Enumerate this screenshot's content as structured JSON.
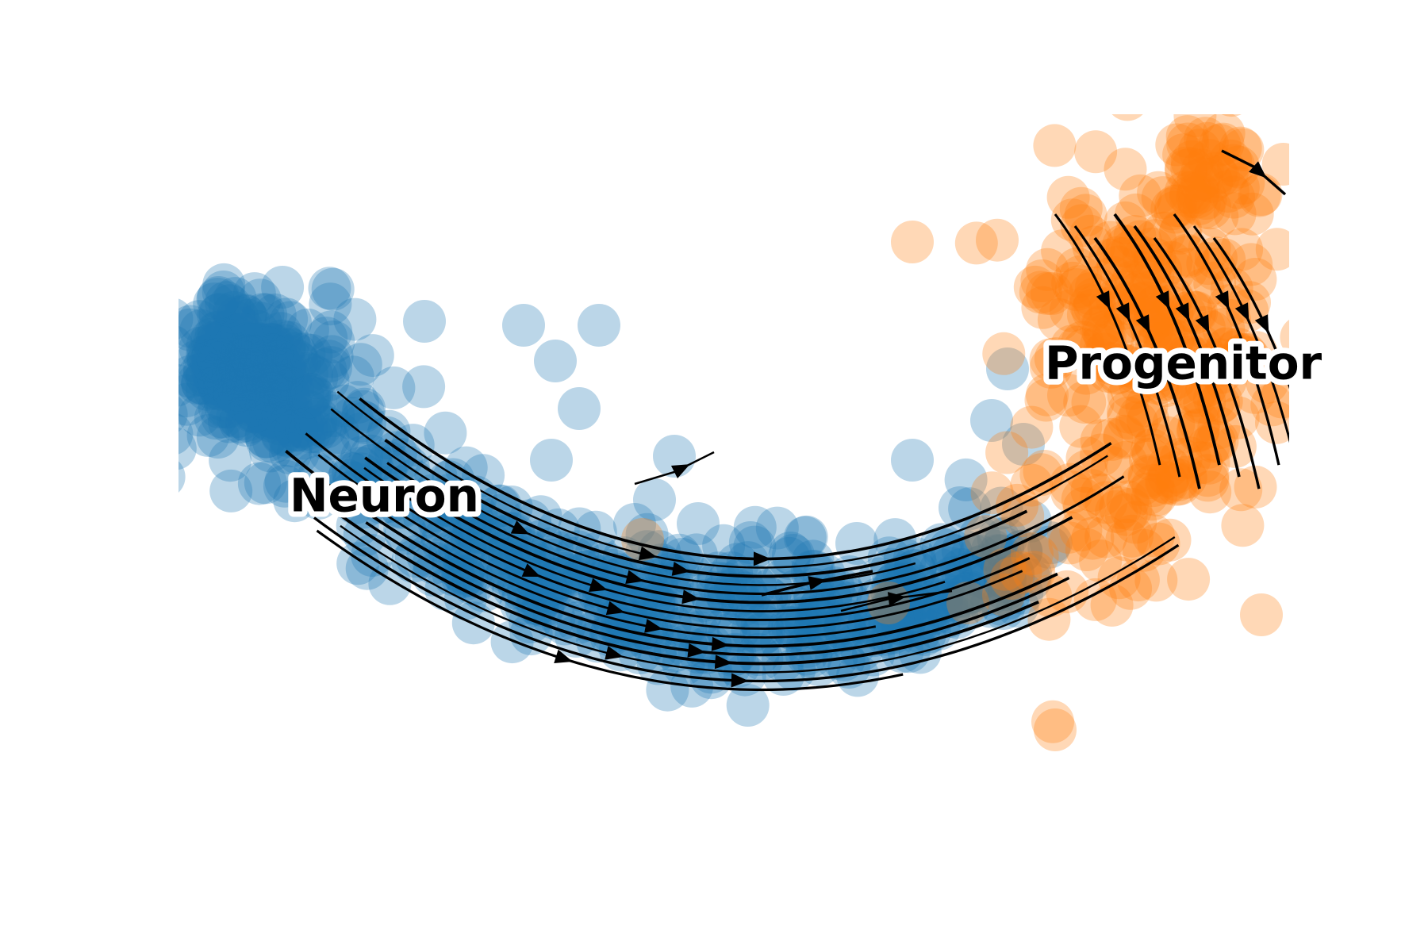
{
  "chart_data": {
    "type": "scatter",
    "title": "",
    "xlabel": "",
    "ylabel": "",
    "axes_visible": false,
    "grid": false,
    "xlim": [
      0,
      100
    ],
    "ylim": [
      0,
      100
    ],
    "legend": "none",
    "overlay": "velocity-streamlines",
    "clusters": [
      {
        "label": "Neuron",
        "color": "#1f77b4",
        "label_pos": [
          10,
          46
        ]
      },
      {
        "label": "Progenitor",
        "color": "#ff7f0e",
        "label_pos": [
          78,
          64
        ]
      }
    ],
    "point_alpha": 0.3,
    "streamline_color": "#000000"
  }
}
